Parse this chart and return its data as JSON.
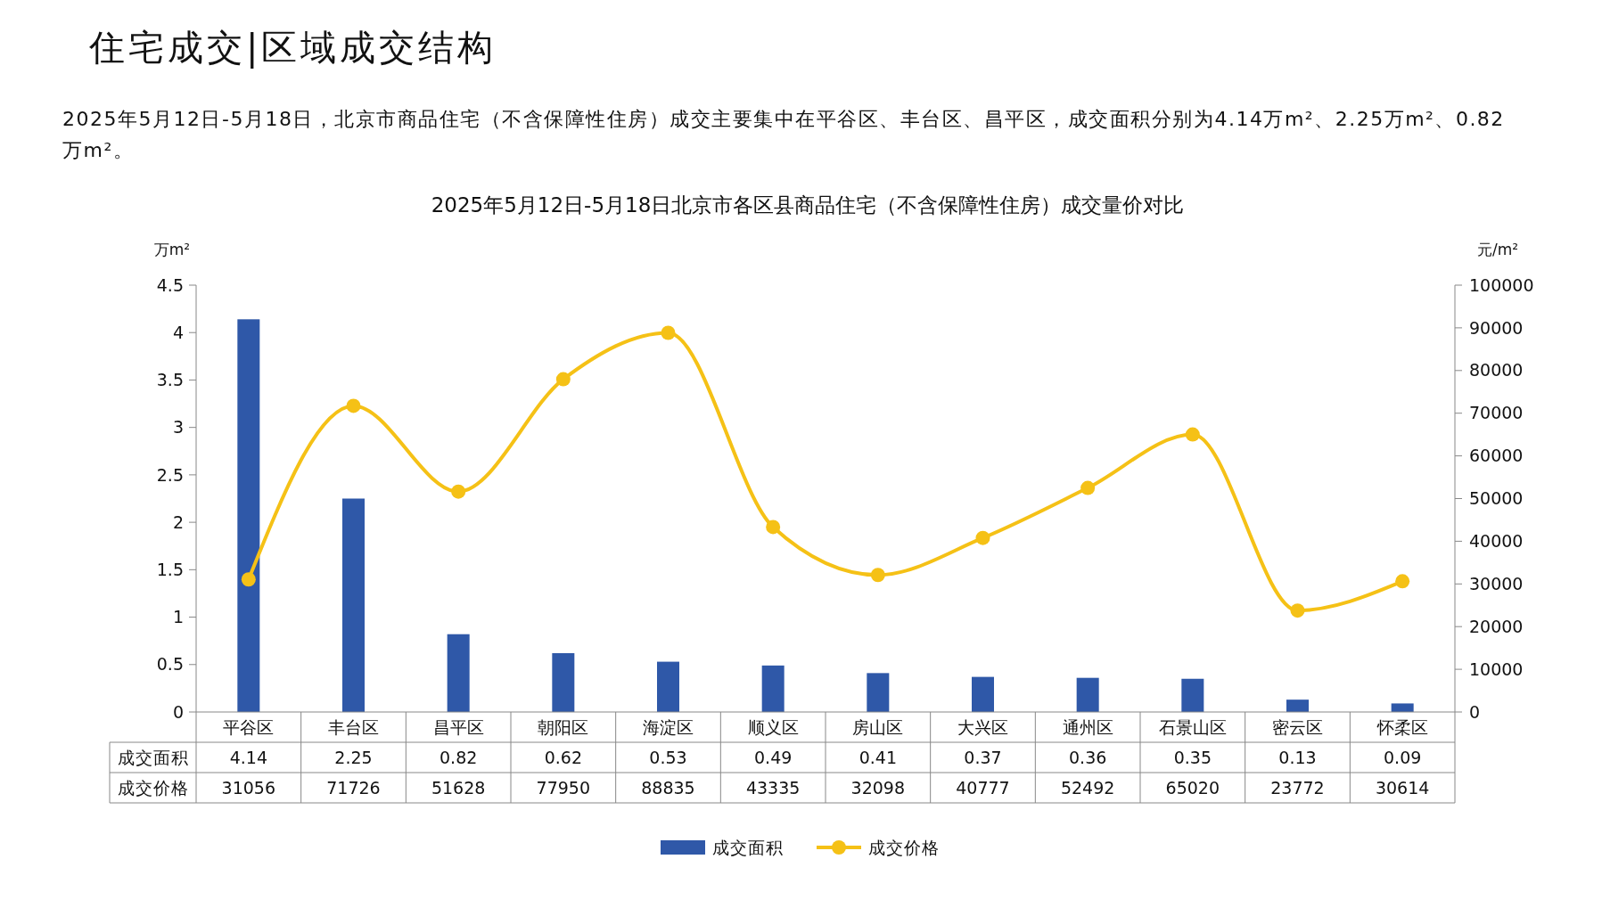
{
  "chart_data": {
    "type": "bar",
    "title": "2025年5月12日-5月18日北京市各区县商品住宅（不含保障性住房）成交量价对比",
    "annotations": [
      "住宅成交|区域成交结构",
      "2025年5月12日-5月18日，北京市商品住宅（不含保障性住房）成交主要集中在平谷区、丰台区、昌平区，成交面积分别为4.14万m²、2.25万m²、0.82万m²。"
    ],
    "ylabel": "万m²",
    "y2label": "元/m²",
    "categories": [
      "平谷区",
      "丰台区",
      "昌平区",
      "朝阳区",
      "海淀区",
      "顺义区",
      "房山区",
      "大兴区",
      "通州区",
      "石景山区",
      "密云区",
      "怀柔区"
    ],
    "series": [
      {
        "name": "成交面积",
        "color": "#2f58a8",
        "values": [
          4.14,
          2.25,
          0.82,
          0.62,
          0.53,
          0.49,
          0.41,
          0.37,
          0.36,
          0.35,
          0.13,
          0.09
        ]
      },
      {
        "name": "成交价格",
        "type": "line",
        "axis": "y2",
        "color": "#f5c116",
        "marker": "circle",
        "values": [
          31056,
          71726,
          51628,
          77950,
          88835,
          43335,
          32098,
          40777,
          52492,
          65020,
          23772,
          30614
        ]
      }
    ],
    "ylim": [
      0,
      4.5
    ],
    "yticks": [
      0,
      0.5,
      1,
      1.5,
      2,
      2.5,
      3,
      3.5,
      4,
      4.5
    ],
    "y2lim": [
      0,
      100000
    ],
    "y2ticks": [
      0,
      10000,
      20000,
      30000,
      40000,
      50000,
      60000,
      70000,
      80000,
      90000,
      100000
    ],
    "data_labels": true,
    "legend": "bottom",
    "grid": false
  }
}
